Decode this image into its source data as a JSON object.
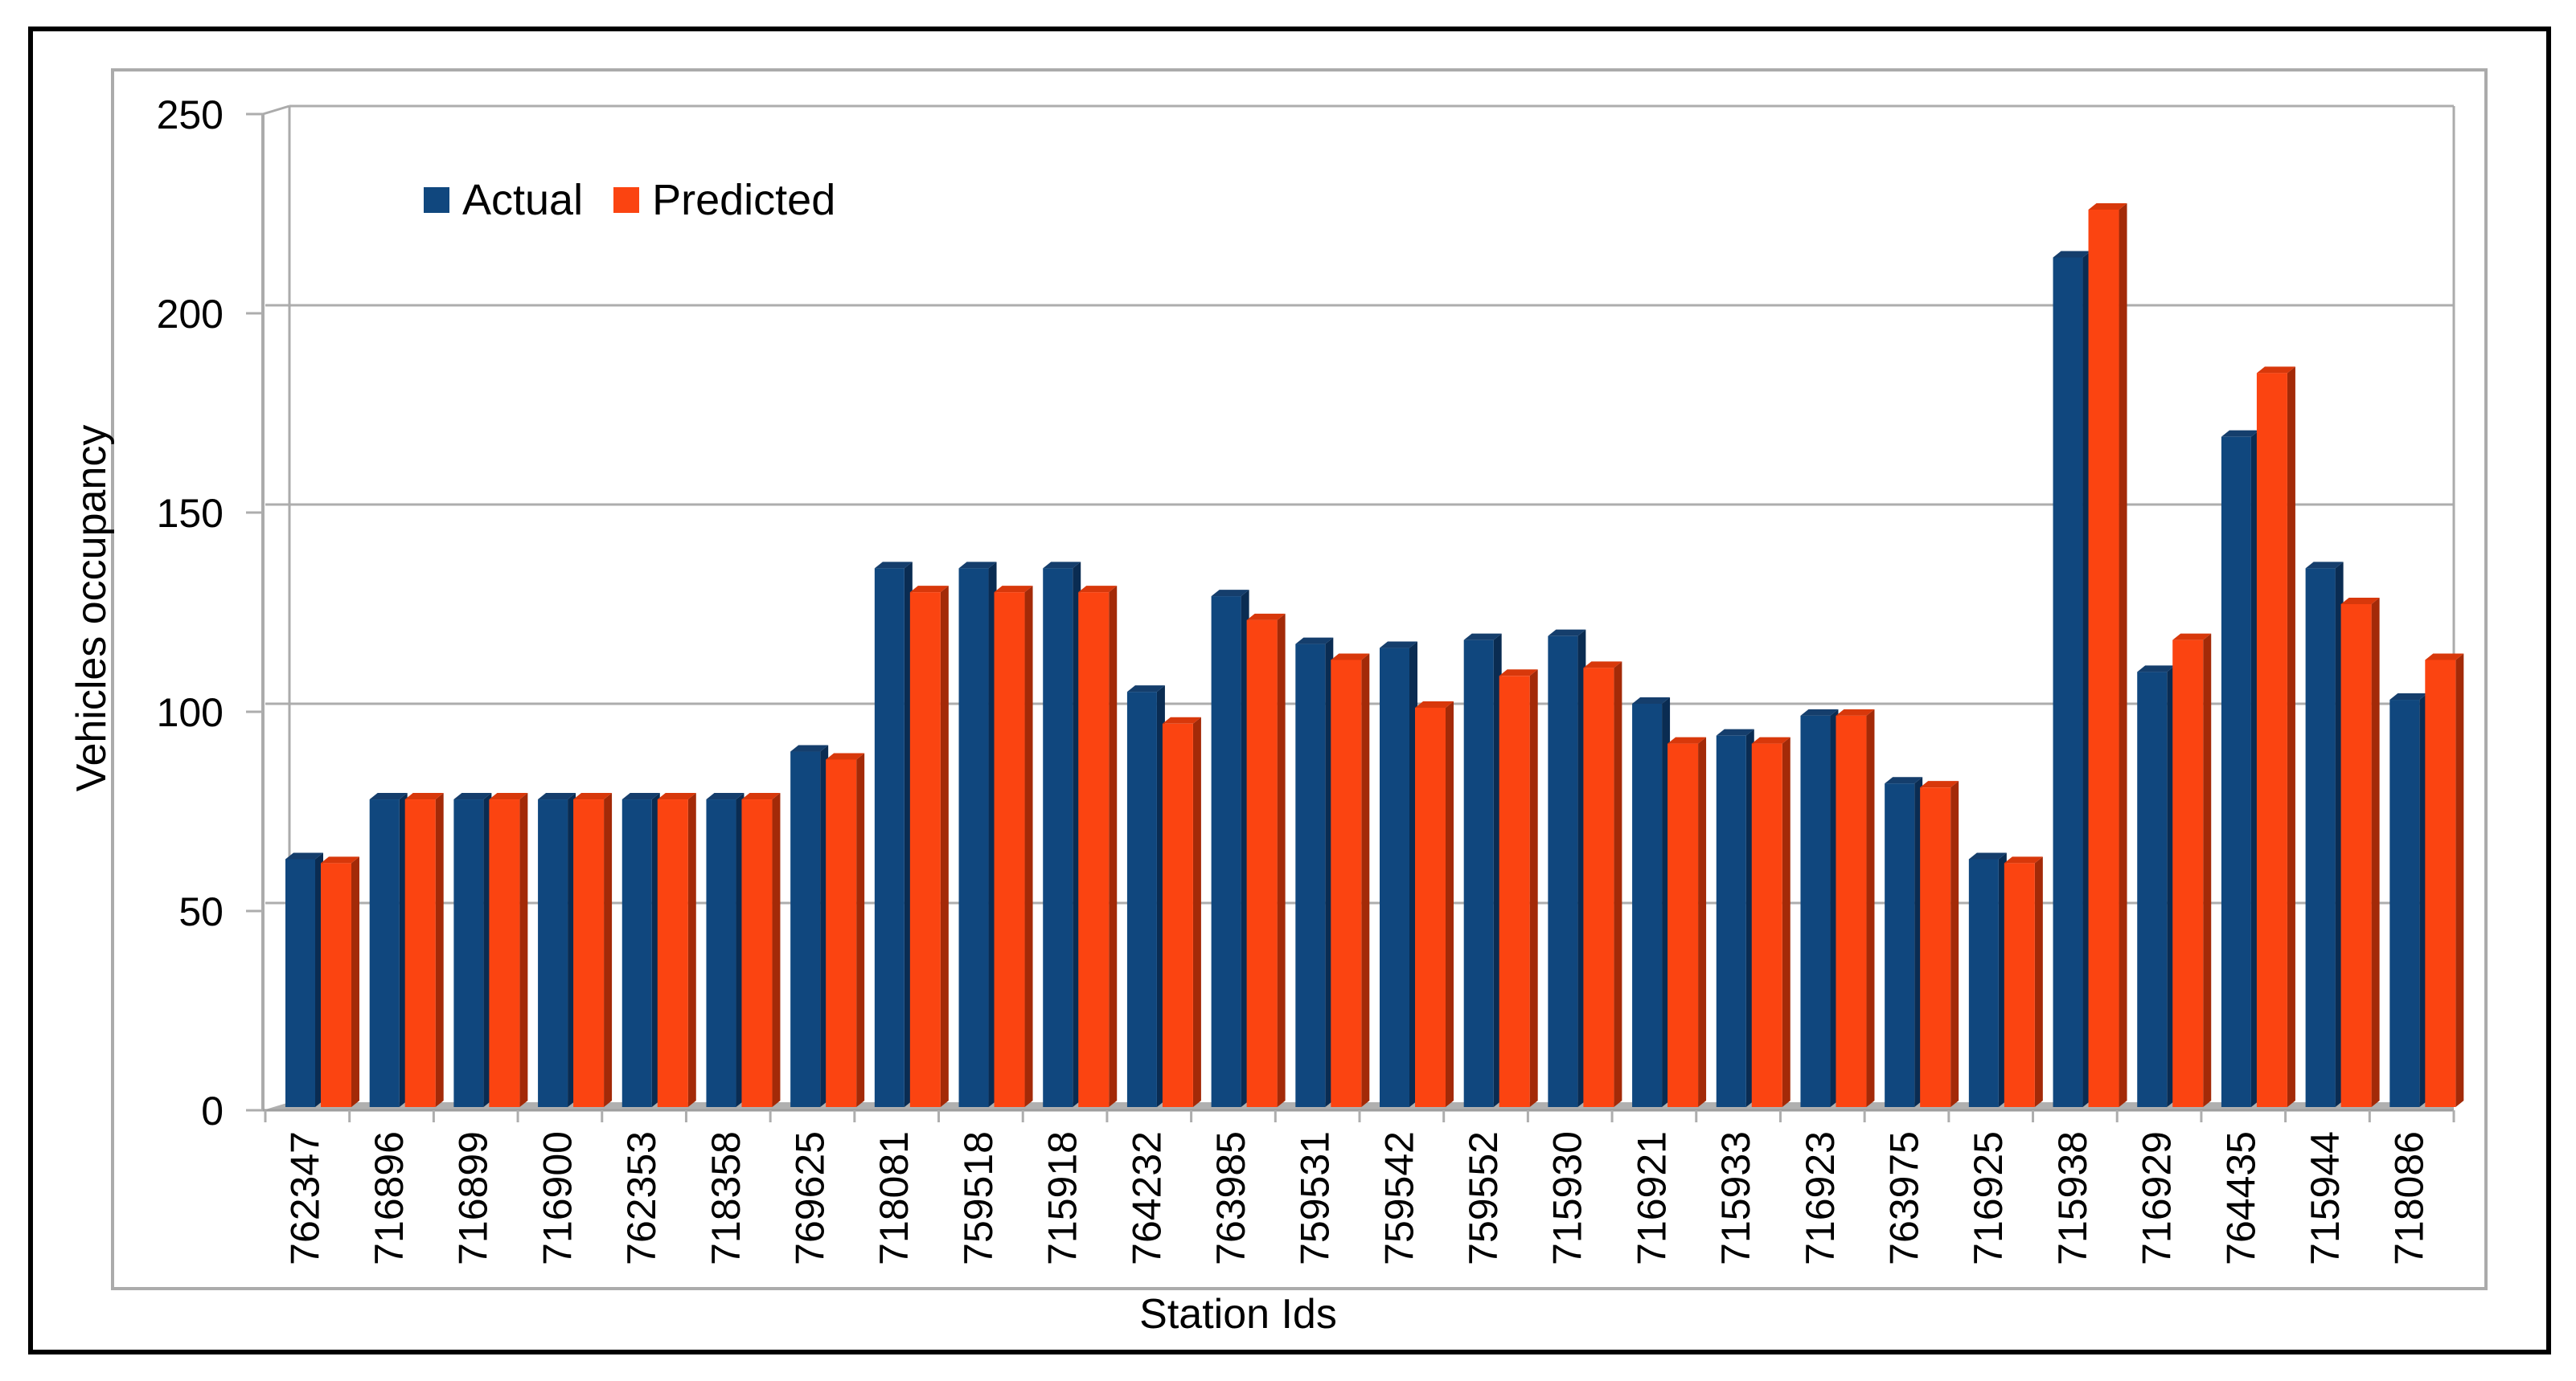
{
  "frame": {
    "outer_border_color": "#000000",
    "chart_border_color": "#ABABAB",
    "gridline_color": "#ADADAD",
    "floor_color": "#B0B0B0",
    "floor_edge_color": "#9E9E9E",
    "background": "#FFFFFF"
  },
  "legend": {
    "items": [
      {
        "label": "Actual",
        "color": "#10477E"
      },
      {
        "label": "Predicted",
        "color": "#FB4411"
      }
    ]
  },
  "chart_data": {
    "type": "bar",
    "title": "",
    "xlabel": "Station Ids",
    "ylabel": "Vehicles occupancy",
    "ylim": [
      0,
      250
    ],
    "yticks": [
      0,
      50,
      100,
      150,
      200,
      250
    ],
    "grid": true,
    "legend_position": "top-left-inside",
    "style": "3d-clustered-column",
    "categories": [
      "762347",
      "716896",
      "716899",
      "716900",
      "762353",
      "718358",
      "769625",
      "718081",
      "759518",
      "715918",
      "764232",
      "763985",
      "759531",
      "759542",
      "759552",
      "715930",
      "716921",
      "715933",
      "716923",
      "763975",
      "716925",
      "715938",
      "716929",
      "764435",
      "715944",
      "718086"
    ],
    "series": [
      {
        "name": "Actual",
        "color": "#10477E",
        "side_color": "#0A2C52",
        "top_color": "#153E6C",
        "values": [
          61,
          76,
          76,
          76,
          76,
          76,
          88,
          134,
          134,
          134,
          103,
          127,
          115,
          114,
          116,
          117,
          100,
          92,
          97,
          80,
          61,
          212,
          108,
          167,
          134,
          101
        ]
      },
      {
        "name": "Predicted",
        "color": "#FB4411",
        "side_color": "#A32A08",
        "top_color": "#D8380B",
        "values": [
          60,
          76,
          76,
          76,
          76,
          76,
          86,
          128,
          128,
          128,
          95,
          121,
          111,
          99,
          107,
          109,
          90,
          90,
          97,
          79,
          60,
          224,
          116,
          183,
          125,
          111
        ]
      }
    ]
  }
}
